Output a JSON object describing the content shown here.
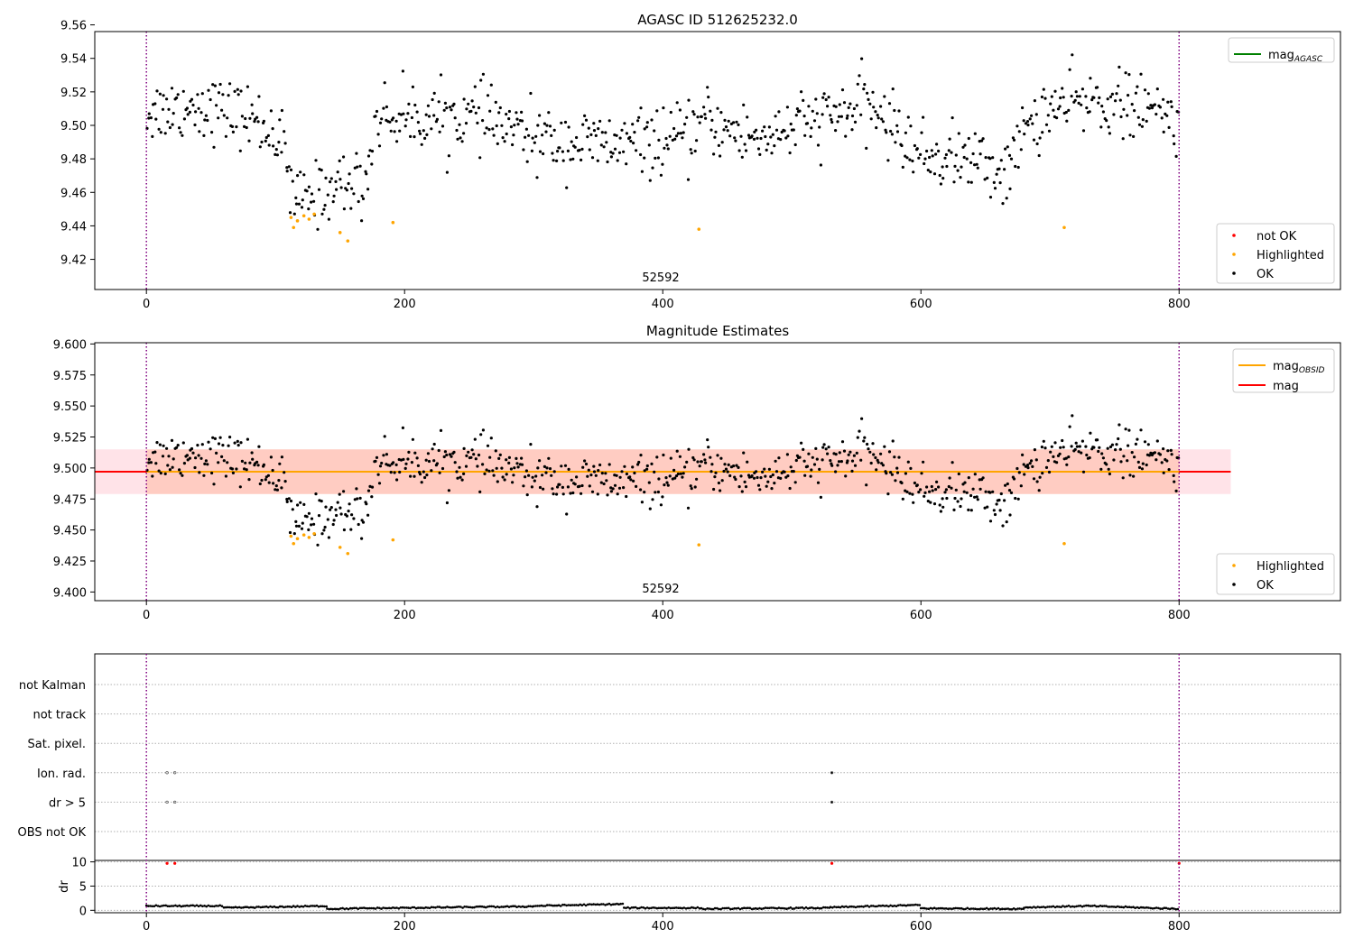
{
  "chart_data": [
    {
      "type": "scatter",
      "title": "AGASC ID 512625232.0",
      "annotation": "52592",
      "xlim": [
        -40,
        925
      ],
      "ylim": [
        9.402,
        9.556
      ],
      "xticks": [
        0,
        200,
        400,
        600,
        800
      ],
      "yticks": [
        9.42,
        9.44,
        9.46,
        9.48,
        9.5,
        9.52,
        9.54,
        9.56
      ],
      "ytick_labels": [
        "9.42",
        "9.44",
        "9.46",
        "9.48",
        "9.50",
        "9.52",
        "9.54",
        "9.56"
      ],
      "vlines": [
        0,
        800
      ],
      "legend_lines": [
        {
          "label_main": "mag",
          "label_sub": "AGASC",
          "color": "#008000"
        }
      ],
      "legend_markers": [
        {
          "label": "not OK",
          "color": "#ff0000"
        },
        {
          "label": "Highlighted",
          "color": "#ffa500"
        },
        {
          "label": "OK",
          "color": "#000000"
        }
      ],
      "series": [
        {
          "name": "Highlighted",
          "color": "#ffa500",
          "x": [
            112,
            114,
            117,
            122,
            126,
            130,
            150,
            156,
            191,
            428,
            711
          ],
          "y": [
            9.445,
            9.439,
            9.443,
            9.446,
            9.444,
            9.447,
            9.436,
            9.431,
            9.442,
            9.438,
            9.439
          ]
        }
      ]
    },
    {
      "type": "scatter",
      "title": "Magnitude Estimates",
      "annotation": "52592",
      "xlim": [
        -40,
        925
      ],
      "ylim": [
        9.393,
        9.601
      ],
      "xticks": [
        0,
        200,
        400,
        600,
        800
      ],
      "yticks": [
        9.4,
        9.425,
        9.45,
        9.475,
        9.5,
        9.525,
        9.55,
        9.575,
        9.6
      ],
      "ytick_labels": [
        "9.400",
        "9.425",
        "9.450",
        "9.475",
        "9.500",
        "9.525",
        "9.550",
        "9.575",
        "9.600"
      ],
      "vlines": [
        0,
        800
      ],
      "hlines": [
        {
          "y": 9.497,
          "color": "#ff0000"
        },
        {
          "y": 9.497,
          "color": "#ffa500",
          "x_range": [
            0,
            800
          ]
        }
      ],
      "bands": [
        {
          "y_range": [
            9.479,
            9.515
          ],
          "x_range": [
            -40,
            840
          ],
          "color": "#ffc0cb"
        },
        {
          "y_range": [
            9.479,
            9.515
          ],
          "x_range": [
            0,
            800
          ],
          "color": "#ffa07a"
        }
      ],
      "legend_lines": [
        {
          "label_main": "mag",
          "label_sub": "OBSID",
          "color": "#ffa500"
        },
        {
          "label_main": "mag",
          "label_sub": "",
          "color": "#ff0000"
        }
      ],
      "legend_markers": [
        {
          "label": "Highlighted",
          "color": "#ffa500"
        },
        {
          "label": "OK",
          "color": "#000000"
        }
      ],
      "series": [
        {
          "name": "Highlighted",
          "color": "#ffa500",
          "x": [
            112,
            114,
            117,
            122,
            126,
            130,
            150,
            156,
            191,
            428,
            711
          ],
          "y": [
            9.445,
            9.439,
            9.443,
            9.446,
            9.444,
            9.447,
            9.436,
            9.431,
            9.442,
            9.438,
            9.439
          ]
        }
      ]
    },
    {
      "type": "scatter",
      "xlim": [
        -40,
        925
      ],
      "xticks": [
        0,
        200,
        400,
        600,
        800
      ],
      "vlines": [
        0,
        800
      ],
      "flag_rows": [
        "not Kalman",
        "not track",
        "Sat. pixel.",
        "Ion. rad.",
        "dr > 5",
        "OBS not OK"
      ],
      "flag_points": [
        {
          "row": "Ion. rad.",
          "x": [
            16,
            22,
            531
          ]
        },
        {
          "row": "dr > 5",
          "x": [
            16,
            22,
            531
          ]
        }
      ],
      "dr_ylabel": "dr",
      "dr_yticks": [
        0,
        5,
        10
      ],
      "dr_ylim": [
        -0.5,
        10.3
      ],
      "dr_red_points": {
        "x": [
          16,
          22,
          531,
          800
        ],
        "y": [
          9.7,
          9.7,
          9.7,
          9.7
        ]
      },
      "dr_segments": [
        {
          "x": [
            0,
            60
          ],
          "y": [
            0.9,
            0.9
          ]
        },
        {
          "x": [
            60,
            140
          ],
          "y": [
            0.5,
            0.9
          ]
        },
        {
          "x": [
            140,
            230
          ],
          "y": [
            0.3,
            0.6
          ]
        },
        {
          "x": [
            230,
            300
          ],
          "y": [
            0.6,
            0.8
          ]
        },
        {
          "x": [
            300,
            370
          ],
          "y": [
            0.9,
            1.3
          ]
        },
        {
          "x": [
            370,
            430
          ],
          "y": [
            0.5,
            0.5
          ]
        },
        {
          "x": [
            430,
            530
          ],
          "y": [
            0.3,
            0.5
          ]
        },
        {
          "x": [
            530,
            600
          ],
          "y": [
            0.6,
            1.1
          ]
        },
        {
          "x": [
            600,
            680
          ],
          "y": [
            0.4,
            0.3
          ]
        },
        {
          "x": [
            680,
            730
          ],
          "y": [
            0.6,
            0.9
          ]
        },
        {
          "x": [
            730,
            800
          ],
          "y": [
            0.9,
            0.3
          ]
        }
      ]
    }
  ]
}
